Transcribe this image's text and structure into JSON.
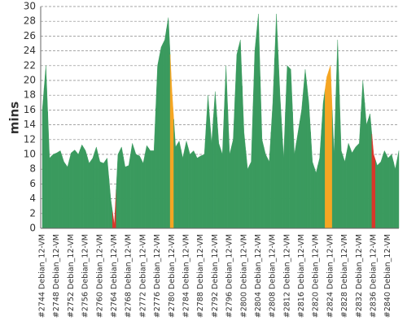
{
  "chart_data": {
    "type": "area",
    "y_label": "mins",
    "ylim": [
      0,
      30
    ],
    "yticks": [
      0,
      2,
      4,
      6,
      8,
      10,
      12,
      14,
      16,
      18,
      20,
      22,
      24,
      26,
      28,
      30
    ],
    "grid": true,
    "categories": [
      "#2744 Debian_12-VM",
      null,
      null,
      null,
      "#2748 Debian_12-VM",
      null,
      null,
      null,
      "#2752 Debian_12-VM",
      null,
      null,
      null,
      "#2756 Debian_12-VM",
      null,
      null,
      null,
      "#2760 Debian_12-VM",
      null,
      null,
      null,
      "#2764 Debian_12-VM",
      null,
      null,
      null,
      "#2768 Debian_12-VM",
      null,
      null,
      null,
      "#2772 Debian_12-VM",
      null,
      null,
      null,
      "#2776 Debian_12-VM",
      null,
      null,
      null,
      "#2780 Debian_12-VM",
      null,
      null,
      null,
      "#2784 Debian_12-VM",
      null,
      null,
      null,
      "#2788 Debian_12-VM",
      null,
      null,
      null,
      "#2792 Debian_12-VM",
      null,
      null,
      null,
      "#2796 Debian_12-VM",
      null,
      null,
      null,
      "#2800 Debian_12-VM",
      null,
      null,
      null,
      "#2804 Debian_12-VM",
      null,
      null,
      null,
      "#2808 Debian_12-VM",
      null,
      null,
      null,
      "#2812 Debian_12-VM",
      null,
      null,
      null,
      "#2816 Debian_12-VM",
      null,
      null,
      null,
      "#2820 Debian_12-VM",
      null,
      null,
      null,
      "#2824 Debian_12-VM",
      null,
      null,
      null,
      "#2828 Debian_12-VM",
      null,
      null,
      null,
      "#2832 Debian_12-VM",
      null,
      null,
      null,
      "#2836 Debian_12-VM",
      null,
      null,
      null,
      "#2840 Debian_12-VM",
      null,
      null,
      null
    ],
    "values": [
      16,
      22,
      9.5,
      10,
      10.2,
      10.5,
      9,
      8.3,
      10.2,
      10.6,
      10,
      11.3,
      10.5,
      8.8,
      9.5,
      11,
      9,
      8.8,
      9.5,
      4,
      0.5,
      10,
      11,
      8.3,
      8.5,
      11.5,
      10,
      9.8,
      8.8,
      11.2,
      10.5,
      10.5,
      22,
      24.5,
      25.5,
      28.5,
      18.5,
      11,
      11.8,
      9.5,
      11.8,
      10,
      10.5,
      9.5,
      9.8,
      10,
      18,
      11.5,
      18.5,
      11.5,
      10,
      22,
      10,
      12,
      23.5,
      25.5,
      13,
      8,
      9,
      24,
      29,
      12,
      10,
      9,
      17,
      29,
      18,
      9.5,
      22,
      21.5,
      10,
      13,
      16,
      21.5,
      17,
      9,
      7.5,
      9.5,
      17,
      20.5,
      22,
      10,
      25.5,
      10.5,
      9,
      11.5,
      10.2,
      11,
      11.5,
      20,
      14,
      15.5,
      10,
      8.5,
      9,
      10.5,
      9.5,
      10,
      8,
      10.5
    ],
    "colors": [
      "#3a9a5e",
      "#3a9a5e",
      "#3a9a5e",
      "#3a9a5e",
      "#3a9a5e",
      "#3a9a5e",
      "#3a9a5e",
      "#3a9a5e",
      "#3a9a5e",
      "#3a9a5e",
      "#3a9a5e",
      "#3a9a5e",
      "#3a9a5e",
      "#3a9a5e",
      "#3a9a5e",
      "#3a9a5e",
      "#3a9a5e",
      "#3a9a5e",
      "#3a9a5e",
      "#3a9a5e",
      "#d9362a",
      "#3a9a5e",
      "#3a9a5e",
      "#3a9a5e",
      "#3a9a5e",
      "#3a9a5e",
      "#3a9a5e",
      "#3a9a5e",
      "#3a9a5e",
      "#3a9a5e",
      "#3a9a5e",
      "#3a9a5e",
      "#3a9a5e",
      "#3a9a5e",
      "#3a9a5e",
      "#3a9a5e",
      "#f5a623",
      "#3a9a5e",
      "#3a9a5e",
      "#3a9a5e",
      "#3a9a5e",
      "#3a9a5e",
      "#3a9a5e",
      "#3a9a5e",
      "#3a9a5e",
      "#3a9a5e",
      "#3a9a5e",
      "#3a9a5e",
      "#3a9a5e",
      "#3a9a5e",
      "#3a9a5e",
      "#3a9a5e",
      "#3a9a5e",
      "#3a9a5e",
      "#3a9a5e",
      "#3a9a5e",
      "#3a9a5e",
      "#3a9a5e",
      "#3a9a5e",
      "#3a9a5e",
      "#3a9a5e",
      "#3a9a5e",
      "#3a9a5e",
      "#3a9a5e",
      "#3a9a5e",
      "#3a9a5e",
      "#3a9a5e",
      "#3a9a5e",
      "#3a9a5e",
      "#3a9a5e",
      "#3a9a5e",
      "#3a9a5e",
      "#3a9a5e",
      "#3a9a5e",
      "#3a9a5e",
      "#3a9a5e",
      "#3a9a5e",
      "#3a9a5e",
      "#3a9a5e",
      "#f5a623",
      "#f5a623",
      "#3a9a5e",
      "#3a9a5e",
      "#3a9a5e",
      "#3a9a5e",
      "#3a9a5e",
      "#3a9a5e",
      "#3a9a5e",
      "#3a9a5e",
      "#3a9a5e",
      "#3a9a5e",
      "#3a9a5e",
      "#d9362a",
      "#3a9a5e",
      "#3a9a5e",
      "#3a9a5e",
      "#3a9a5e",
      "#3a9a5e",
      "#3a9a5e",
      "#3a9a5e"
    ]
  }
}
